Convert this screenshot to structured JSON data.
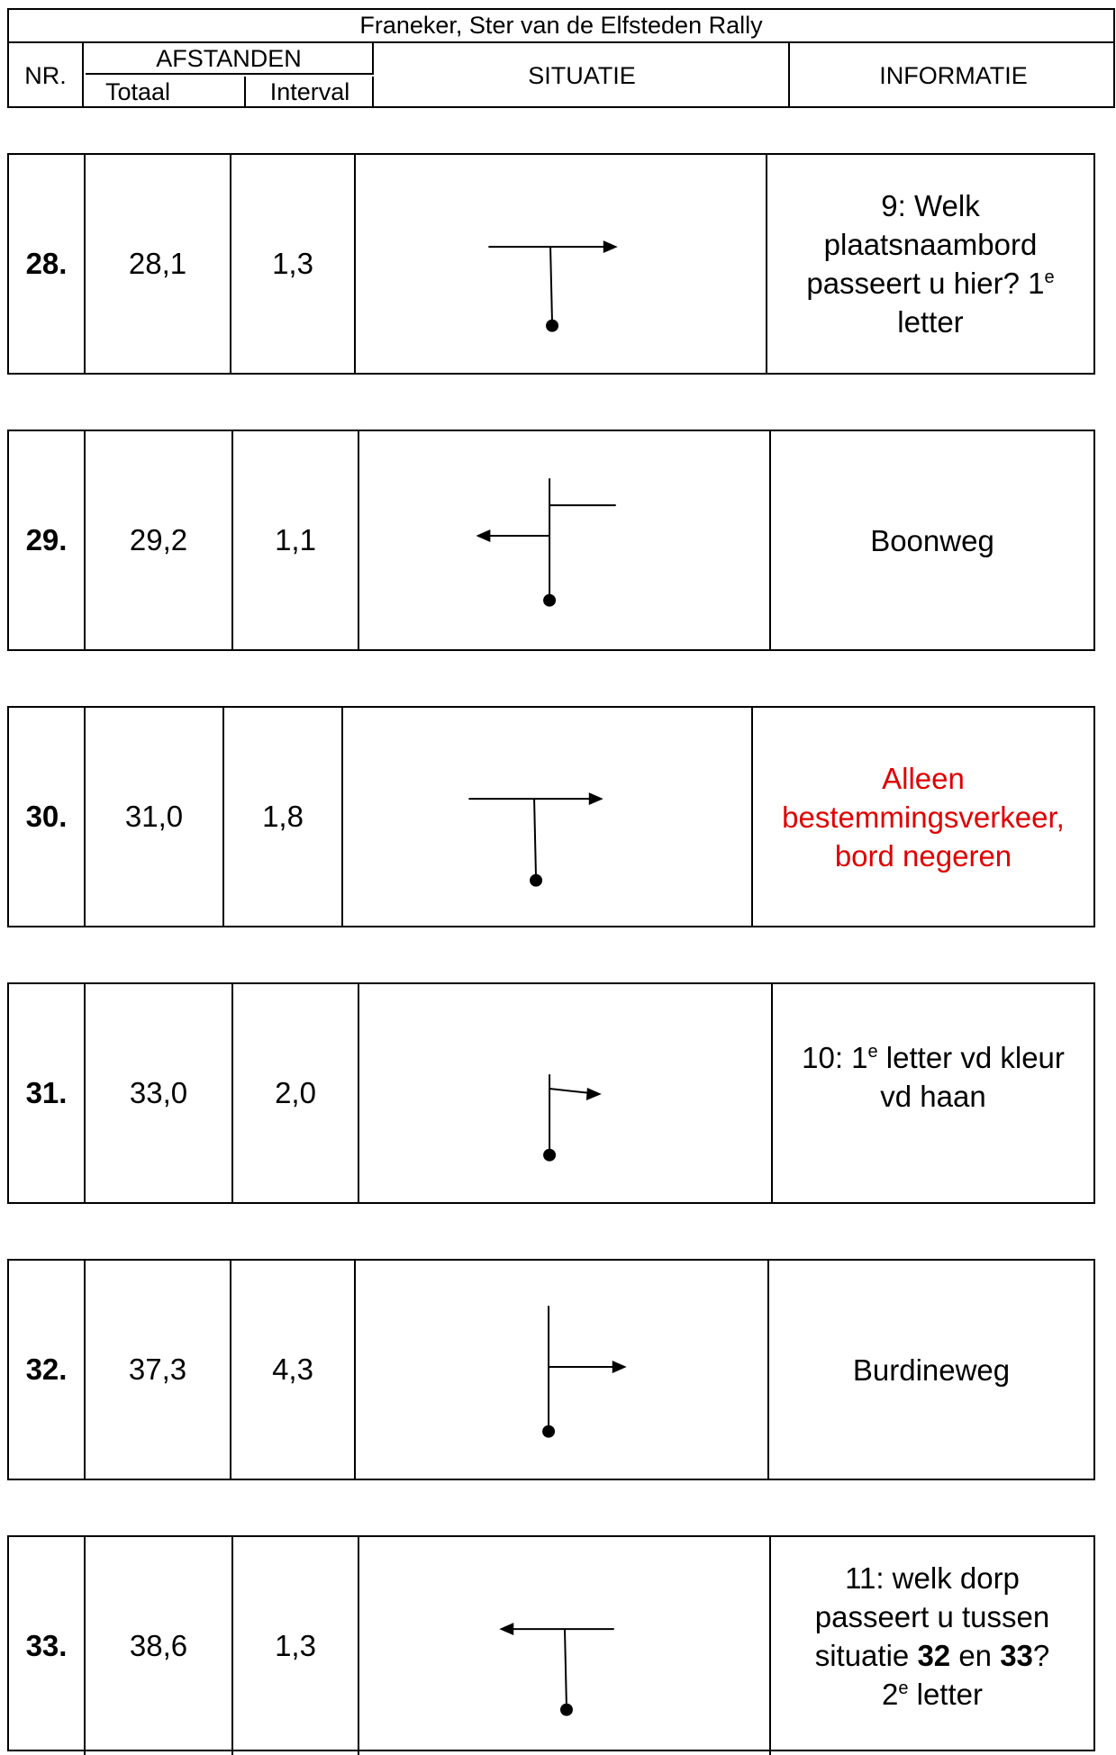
{
  "header": {
    "title": "Franeker, Ster van de Elfsteden Rally",
    "nr": "NR.",
    "afstanden": "AFSTANDEN",
    "totaal": "Totaal",
    "interval": "Interval",
    "situatie": "SITUATIE",
    "informatie": "INFORMATIE"
  },
  "rows": [
    {
      "nr": "28.",
      "totaal": "28,1",
      "interval": "1,3",
      "diagram": "t-junction-right-arrow",
      "info": {
        "l1": "9: Welk",
        "l2": "plaatsnaambord",
        "l3a": "passeert u hier? 1",
        "l3sup": "e",
        "l4": "letter"
      }
    },
    {
      "nr": "29.",
      "totaal": "29,2",
      "interval": "1,1",
      "diagram": "crossing-left-arrow",
      "info": {
        "text": "Boonweg"
      }
    },
    {
      "nr": "30.",
      "totaal": "31,0",
      "interval": "1,8",
      "diagram": "t-junction-right-arrow",
      "info": {
        "l1": "Alleen",
        "l2": "bestemmingsverkeer,",
        "l3": "bord negeren",
        "color": "#e00000"
      }
    },
    {
      "nr": "31.",
      "totaal": "33,0",
      "interval": "2,0",
      "diagram": "fork-right-arrow",
      "info": {
        "l1a": "10: 1",
        "l1sup": "e",
        "l1b": " letter vd kleur",
        "l2": "vd haan"
      }
    },
    {
      "nr": "32.",
      "totaal": "37,3",
      "interval": "4,3",
      "diagram": "side-road-right-arrow",
      "info": {
        "text": "Burdineweg"
      }
    },
    {
      "nr": "33.",
      "totaal": "38,6",
      "interval": "1,3",
      "diagram": "t-junction-left-arrow",
      "info": {
        "l1": "11: welk dorp",
        "l2": "passeert u tussen",
        "l3a": "situatie ",
        "l3b": "32",
        "l3c": " en ",
        "l3d": "33",
        "l3e": "?",
        "l4sup": "e",
        "l4a": "2",
        "l4b": " letter"
      }
    }
  ]
}
